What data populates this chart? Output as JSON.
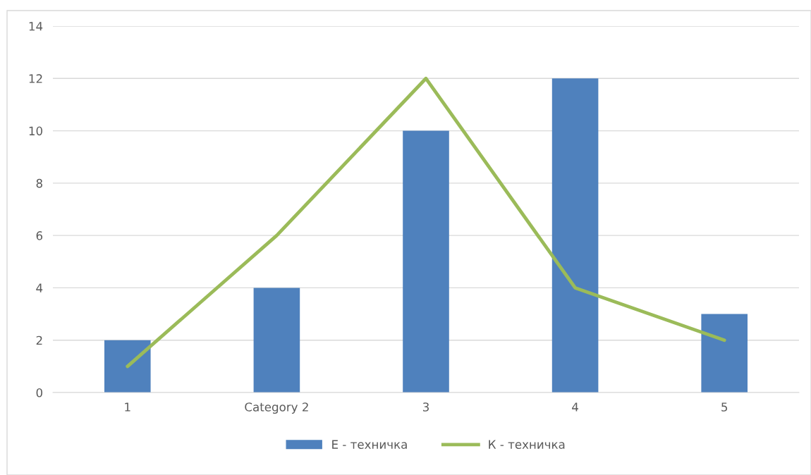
{
  "chart_data": {
    "type": "bar",
    "categories": [
      "1",
      "Category 2",
      "3",
      "4",
      "5"
    ],
    "series": [
      {
        "name": "Е - техничка",
        "color": "#4f81bd",
        "values": [
          2,
          4,
          10,
          12,
          3
        ]
      },
      {
        "name": "К - техничка",
        "color": "#9bbb59",
        "values": [
          1,
          6,
          12,
          4,
          2
        ],
        "type": "line"
      }
    ],
    "ylim": [
      0,
      14
    ],
    "yticks": [
      0,
      2,
      4,
      6,
      8,
      10,
      12,
      14
    ],
    "grid": "y",
    "legend": "bottom",
    "marker": "none"
  }
}
